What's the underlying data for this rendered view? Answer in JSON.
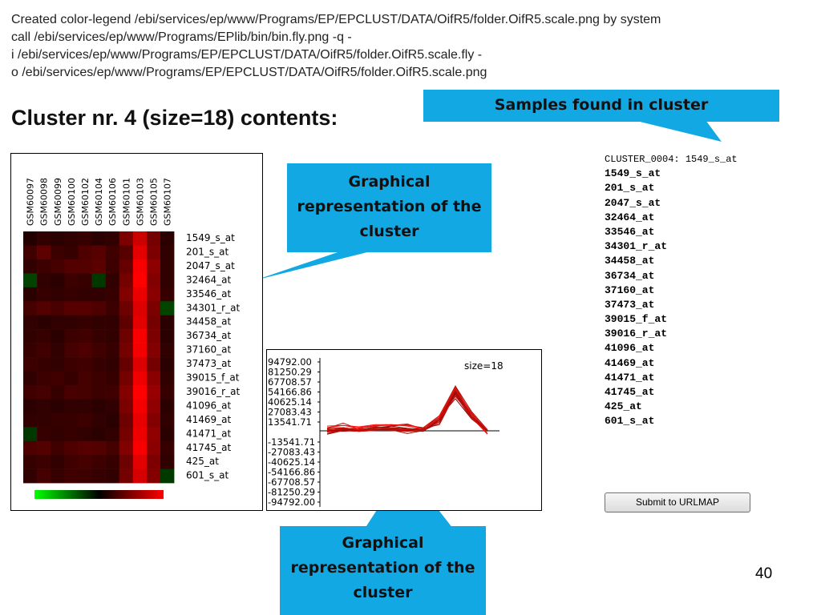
{
  "header": {
    "lines": [
      "Created color-legend /ebi/services/ep/www/Programs/EP/EPCLUST/DATA/OifR5/folder.OifR5.scale.png by system",
      "call /ebi/services/ep/www/Programs/EPlib/bin/bin.fly.png -q -",
      "i /ebi/services/ep/www/Programs/EP/EPCLUST/DATA/OifR5/folder.OifR5.scale.fly -",
      "o /ebi/services/ep/www/Programs/EP/EPCLUST/DATA/OifR5/folder.OifR5.scale.png"
    ]
  },
  "title": "Cluster nr. 4 (size=18) contents:",
  "callouts": [
    {
      "lines": [
        "Samples found in cluster"
      ]
    },
    {
      "lines": [
        "Graphical",
        "representation of the",
        "cluster"
      ]
    },
    {
      "lines": [
        "Graphical",
        "representation of the",
        "cluster"
      ]
    }
  ],
  "heatmap": {
    "samples": [
      "GSM60097",
      "GSM60098",
      "GSM60099",
      "GSM60100",
      "GSM60102",
      "GSM60104",
      "GSM60106",
      "GSM60101",
      "GSM60103",
      "GSM60105",
      "GSM60107"
    ],
    "genes": [
      "1549_s_at",
      "201_s_at",
      "2047_s_at",
      "32464_at",
      "33546_at",
      "34301_r_at",
      "34458_at",
      "36734_at",
      "37160_at",
      "37473_at",
      "39015_f_at",
      "39016_r_at",
      "41096_at",
      "41469_at",
      "41471_at",
      "41745_at",
      "425_at",
      "601_s_at"
    ],
    "values": [
      [
        0,
        2000,
        1000,
        2000,
        3000,
        1000,
        2000,
        20000,
        45000,
        18000,
        1000
      ],
      [
        5000,
        12000,
        4000,
        3000,
        8000,
        10000,
        5000,
        10000,
        52000,
        20000,
        2000
      ],
      [
        2000,
        4000,
        6000,
        9000,
        9000,
        11000,
        4000,
        14000,
        60000,
        25000,
        2000
      ],
      [
        -3000,
        2000,
        1000,
        4000,
        3000,
        -2000,
        2000,
        18000,
        62000,
        22000,
        2000
      ],
      [
        1000,
        3000,
        2000,
        3000,
        2000,
        2000,
        3000,
        22000,
        55000,
        24000,
        3000
      ],
      [
        6000,
        9000,
        7000,
        10000,
        10000,
        8000,
        4000,
        16000,
        50000,
        20000,
        -3000
      ],
      [
        2000,
        1000,
        2000,
        2000,
        3000,
        2000,
        2000,
        12000,
        52000,
        18000,
        1000
      ],
      [
        2000,
        3000,
        1000,
        4000,
        5000,
        3000,
        2000,
        16000,
        60000,
        20000,
        1000
      ],
      [
        3000,
        5000,
        2000,
        6000,
        8000,
        5000,
        3000,
        18000,
        58000,
        22000,
        2000
      ],
      [
        4000,
        3000,
        2000,
        4000,
        5000,
        3000,
        2000,
        14000,
        50000,
        18000,
        1000
      ],
      [
        2000,
        4000,
        5000,
        3000,
        6000,
        4000,
        3000,
        18000,
        56000,
        24000,
        2000
      ],
      [
        5000,
        6000,
        3000,
        7000,
        6000,
        4000,
        5000,
        22000,
        62000,
        28000,
        3000
      ],
      [
        1000,
        2000,
        1000,
        2000,
        2000,
        1000,
        2000,
        20000,
        58000,
        26000,
        1000
      ],
      [
        2000,
        2000,
        3000,
        3000,
        4000,
        2000,
        1000,
        16000,
        54000,
        22000,
        2000
      ],
      [
        -2000,
        3000,
        2000,
        3000,
        2000,
        1000,
        2000,
        18000,
        56000,
        26000,
        1000
      ],
      [
        8000,
        9000,
        5000,
        8000,
        10000,
        9000,
        6000,
        22000,
        60000,
        24000,
        3000
      ],
      [
        3000,
        4000,
        2000,
        5000,
        6000,
        4000,
        3000,
        16000,
        52000,
        20000,
        2000
      ],
      [
        2000,
        6000,
        3000,
        5000,
        4000,
        3000,
        2000,
        18000,
        48000,
        22000,
        -2000
      ]
    ]
  },
  "profile": {
    "type": "line",
    "label": "size=18",
    "ylim": [
      -94792,
      94792
    ],
    "yticks": [
      {
        "value": 94792,
        "label": "94792.00"
      },
      81250.29,
      67708.57,
      54166.86,
      40625.14,
      27083.43,
      13541.71,
      -13541.71,
      -27083.43,
      -40625.14,
      -54166.86,
      -67708.57,
      -81250.29,
      {
        "value": -94792,
        "label": "-94792.00"
      }
    ]
  },
  "cluster_list": {
    "heading": "CLUSTER_0004: 1549_s_at",
    "items": [
      "1549_s_at",
      "201_s_at",
      "2047_s_at",
      "32464_at",
      "33546_at",
      "34301_r_at",
      "34458_at",
      "36734_at",
      "37160_at",
      "37473_at",
      "39015_f_at",
      "39016_r_at",
      "41096_at",
      "41469_at",
      "41471_at",
      "41745_at",
      "425_at",
      "601_s_at"
    ]
  },
  "button": "Submit to URLMAP",
  "page_number": "40"
}
